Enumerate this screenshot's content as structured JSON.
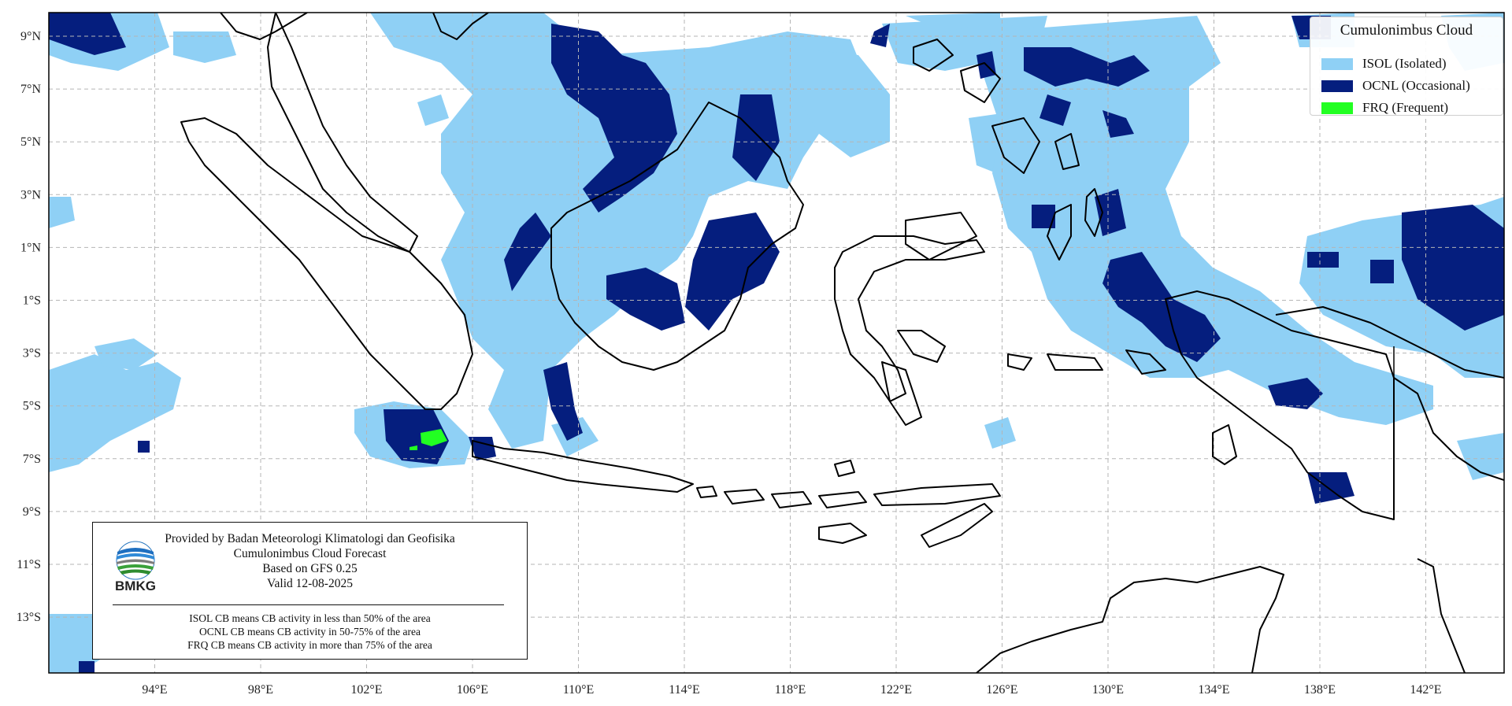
{
  "map": {
    "lat_labels": [
      "9°N",
      "7°N",
      "5°N",
      "3°N",
      "1°N",
      "1°S",
      "3°S",
      "5°S",
      "7°S",
      "9°S",
      "11°S",
      "13°S"
    ],
    "lon_labels": [
      "94°E",
      "98°E",
      "102°E",
      "106°E",
      "110°E",
      "114°E",
      "118°E",
      "122°E",
      "126°E",
      "130°E",
      "134°E",
      "138°E",
      "142°E"
    ],
    "colors": {
      "isol": "#8fd0f5",
      "ocnl": "#051e7e",
      "frq": "#22ff22",
      "coast": "#000000",
      "grid": "#b5b5b5"
    }
  },
  "legend": {
    "title": "Cumulonimbus Cloud",
    "items": [
      {
        "label": "ISOL (Isolated)",
        "color": "#8fd0f5"
      },
      {
        "label": "OCNL (Occasional)",
        "color": "#051e7e"
      },
      {
        "label": "FRQ (Frequent)",
        "color": "#22ff22"
      }
    ]
  },
  "info": {
    "provider": "Provided by Badan Meteorologi Klimatologi dan Geofisika",
    "product": "Cumulonimbus Cloud Forecast",
    "model": "Based on GFS 0.25",
    "valid": "Valid 12-08-2025",
    "note_isol": "ISOL CB means CB activity in less than 50% of the area",
    "note_ocnl": "OCNL CB means CB activity in 50-75% of the area",
    "note_frq": "FRQ CB means CB activity in more than 75% of the area",
    "logo_text": "BMKG"
  }
}
